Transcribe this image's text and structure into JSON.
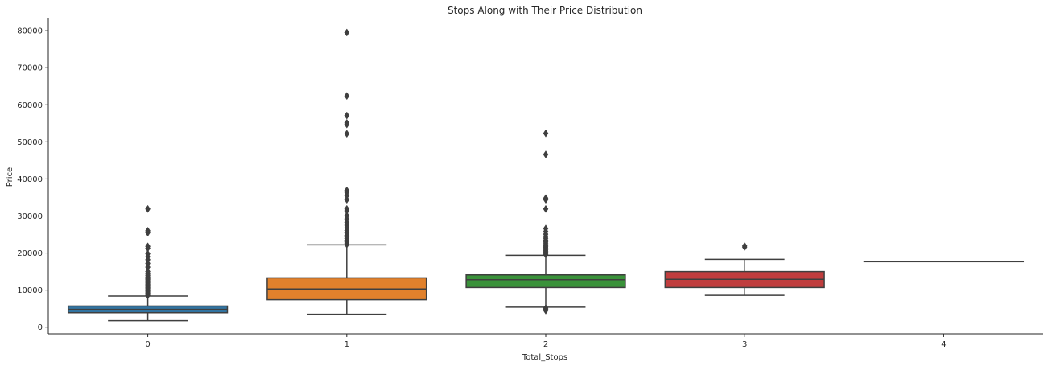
{
  "chart_data": {
    "type": "box",
    "title": "Stops Along with Their Price Distribution",
    "xlabel": "Total_Stops",
    "ylabel": "Price",
    "ylim": [
      -1800,
      83500
    ],
    "yticks": [
      0,
      10000,
      20000,
      30000,
      40000,
      50000,
      60000,
      70000,
      80000
    ],
    "categories": [
      "0",
      "1",
      "2",
      "3",
      "4"
    ],
    "boxes": [
      {
        "category": "0",
        "color": "#3274a1",
        "whisker_low": 1760,
        "q1": 3900,
        "median": 4800,
        "q3": 5700,
        "whisker_high": 8400,
        "outliers": [
          8600,
          8900,
          9200,
          9500,
          9800,
          10100,
          10400,
          10700,
          11000,
          11300,
          11600,
          11900,
          12200,
          12500,
          12800,
          13100,
          13500,
          13900,
          14300,
          15000,
          16200,
          17200,
          18200,
          19000,
          19800,
          21300,
          21800,
          25500,
          26000,
          31900
        ]
      },
      {
        "category": "1",
        "color": "#e1812c",
        "whisker_low": 3500,
        "q1": 7400,
        "median": 10300,
        "q3": 13300,
        "whisker_high": 22200,
        "outliers": [
          22300,
          22700,
          23100,
          23500,
          23900,
          24300,
          24800,
          25400,
          26100,
          26800,
          27500,
          28300,
          29200,
          30100,
          31400,
          31900,
          34400,
          35500,
          36400,
          36900,
          52200,
          54700,
          55100,
          57100,
          62400,
          79500
        ]
      },
      {
        "category": "2",
        "color": "#3a923a",
        "whisker_low": 5400,
        "q1": 10700,
        "median": 12800,
        "q3": 14100,
        "whisker_high": 19400,
        "outliers": [
          4500,
          4800,
          5100,
          19600,
          19900,
          20200,
          20500,
          20800,
          21100,
          21400,
          21700,
          22000,
          22300,
          22700,
          23100,
          23500,
          24000,
          24500,
          25100,
          25800,
          26600,
          31900,
          34400,
          34800,
          46600,
          52300
        ]
      },
      {
        "category": "3",
        "color": "#c03d3e",
        "whisker_low": 8600,
        "q1": 10700,
        "median": 12900,
        "q3": 15000,
        "whisker_high": 18300,
        "outliers": [
          21600,
          21900
        ]
      },
      {
        "category": "4",
        "color": "#9372b2",
        "whisker_low": 17686,
        "q1": 17686,
        "median": 17686,
        "q3": 17686,
        "whisker_high": 17686,
        "outliers": []
      }
    ],
    "legend": null,
    "grid": false
  }
}
